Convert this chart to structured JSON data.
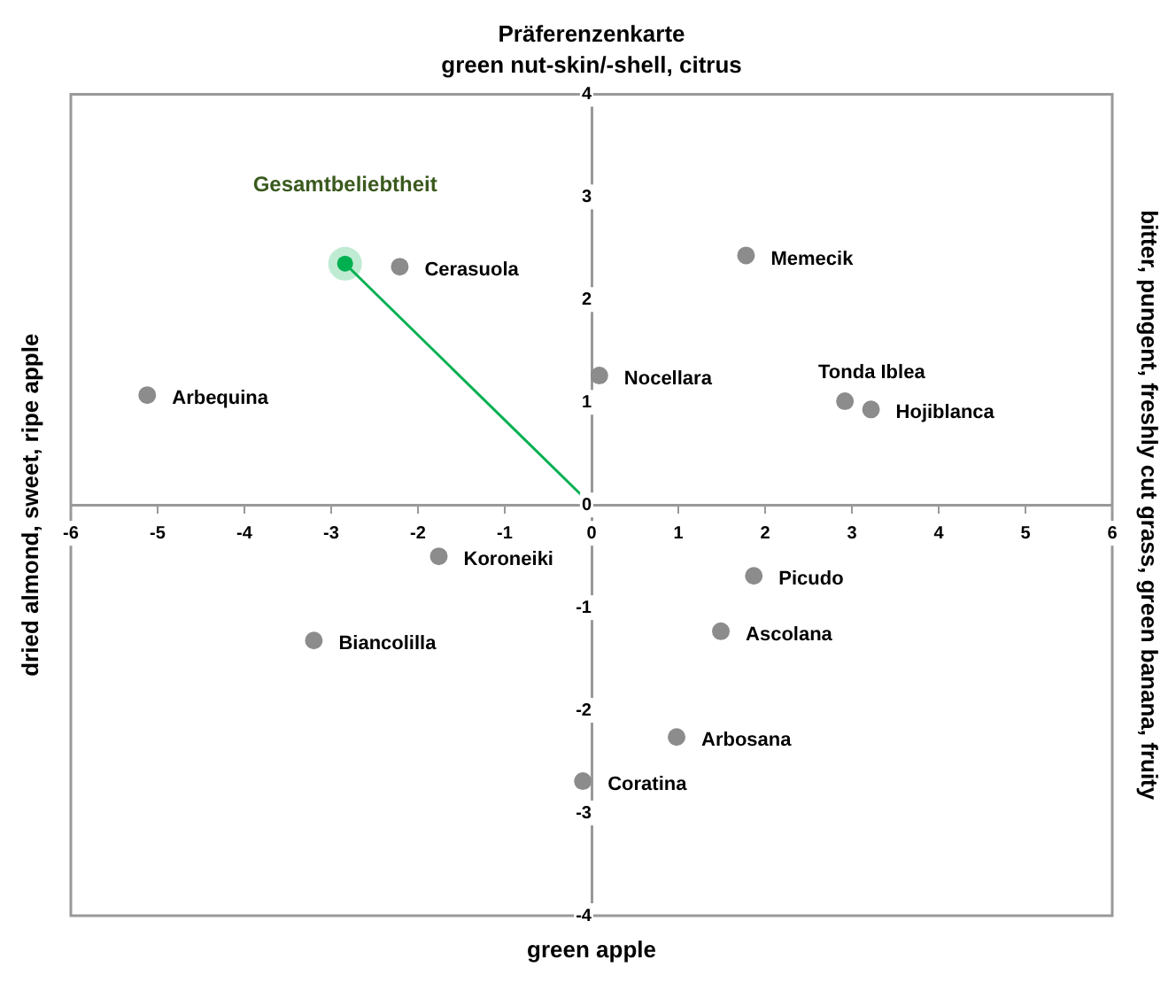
{
  "chart_data": {
    "type": "scatter",
    "title": "Präferenzenkarte",
    "subtitle": "green nut-skin/-shell, citrus",
    "xlabel": "green apple",
    "ylabel": "dried almond, sweet, ripe apple",
    "y2label": "bitter, pungent, freshly cut grass, green banana, fruity",
    "xlim": [
      -6,
      6
    ],
    "xticks": [
      -6,
      -5,
      -4,
      -3,
      -2,
      -1,
      0,
      1,
      2,
      3,
      4,
      5,
      6
    ],
    "ylim": [
      -4,
      4
    ],
    "yticks": [
      -4,
      -3,
      -2,
      -1,
      0,
      1,
      2,
      3,
      4
    ],
    "grid": false,
    "legend": false,
    "marker": "circle",
    "series": [
      {
        "type": "line",
        "color": "#00b050",
        "x": [
          0,
          -2.84
        ],
        "values": [
          0,
          2.35
        ],
        "marker": "none"
      },
      {
        "type": "scatter",
        "color": "#8c8c8c",
        "x": [
          -2.21,
          -5.12,
          0.09,
          1.78,
          2.92,
          3.22,
          -1.76,
          -3.2,
          -0.1,
          1.87,
          1.49,
          0.98
        ],
        "values": [
          2.32,
          1.07,
          1.26,
          2.43,
          1.01,
          0.93,
          -0.5,
          -1.32,
          -2.69,
          -0.69,
          -1.23,
          -2.26
        ]
      },
      {
        "type": "scatter",
        "name": "Gesamtbeliebtheit",
        "color": "#00b050",
        "x": [
          -2.84
        ],
        "values": [
          2.35
        ]
      }
    ],
    "annotations": [
      {
        "text": "Cerasuola",
        "x": -2.21,
        "y": 2.32
      },
      {
        "text": "Arbequina",
        "x": -5.12,
        "y": 1.07
      },
      {
        "text": "Nocellara",
        "x": 0.09,
        "y": 1.26
      },
      {
        "text": "Memecik",
        "x": 1.78,
        "y": 2.43
      },
      {
        "text": "Tonda Iblea",
        "x": 2.92,
        "y": 1.01
      },
      {
        "text": "Hojiblanca",
        "x": 3.22,
        "y": 0.93
      },
      {
        "text": "Koroneiki",
        "x": -1.76,
        "y": -0.5
      },
      {
        "text": "Biancolilla",
        "x": -3.2,
        "y": -1.32
      },
      {
        "text": "Coratina",
        "x": -0.1,
        "y": -2.69
      },
      {
        "text": "Picudo",
        "x": 1.87,
        "y": -0.69
      },
      {
        "text": "Ascolana",
        "x": 1.49,
        "y": -1.23
      },
      {
        "text": "Arbosana",
        "x": 0.98,
        "y": -2.26
      }
    ]
  }
}
